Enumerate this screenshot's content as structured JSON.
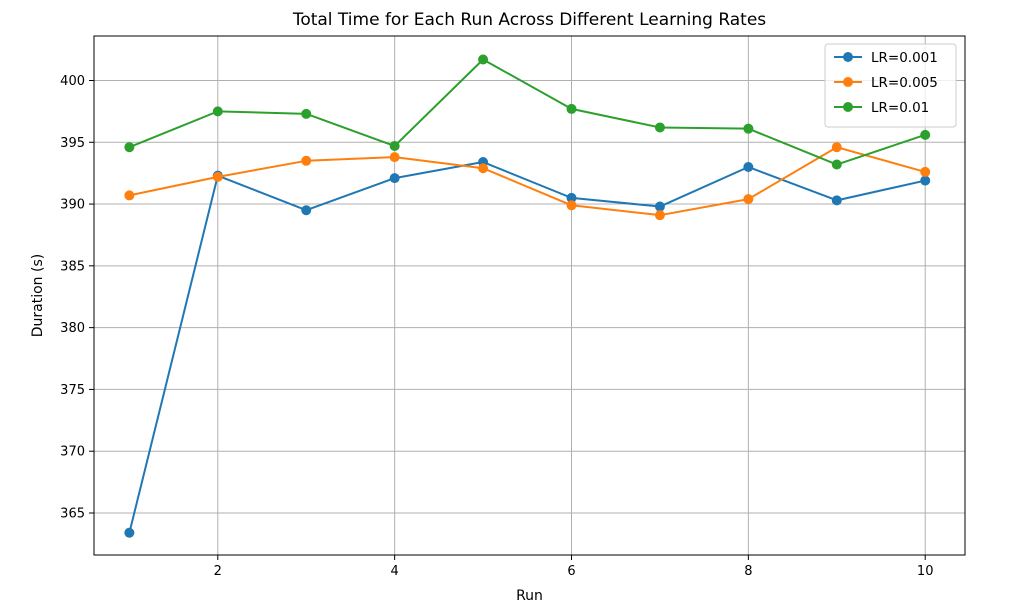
{
  "chart_data": {
    "type": "line",
    "title": "Total Time for Each Run Across Different Learning Rates",
    "xlabel": "Run",
    "ylabel": "Duration (s)",
    "xlim": [
      0.6,
      10.45
    ],
    "ylim": [
      361.6,
      403.6
    ],
    "xticks": [
      2,
      4,
      6,
      8,
      10
    ],
    "yticks": [
      365,
      370,
      375,
      380,
      385,
      390,
      395,
      400
    ],
    "grid": true,
    "legend_position": "top-right",
    "x": [
      1,
      2,
      3,
      4,
      5,
      6,
      7,
      8,
      9,
      10
    ],
    "series": [
      {
        "name": "LR=0.001",
        "color": "#1f77b4",
        "values": [
          363.4,
          392.3,
          389.5,
          392.1,
          393.4,
          390.5,
          389.8,
          393.0,
          390.3,
          391.9
        ]
      },
      {
        "name": "LR=0.005",
        "color": "#ff7f0e",
        "values": [
          390.7,
          392.2,
          393.5,
          393.8,
          392.9,
          389.9,
          389.1,
          390.4,
          394.6,
          392.6
        ]
      },
      {
        "name": "LR=0.01",
        "color": "#2ca02c",
        "values": [
          394.6,
          397.5,
          397.3,
          394.7,
          401.7,
          397.7,
          396.2,
          396.1,
          393.2,
          395.6
        ]
      }
    ]
  }
}
